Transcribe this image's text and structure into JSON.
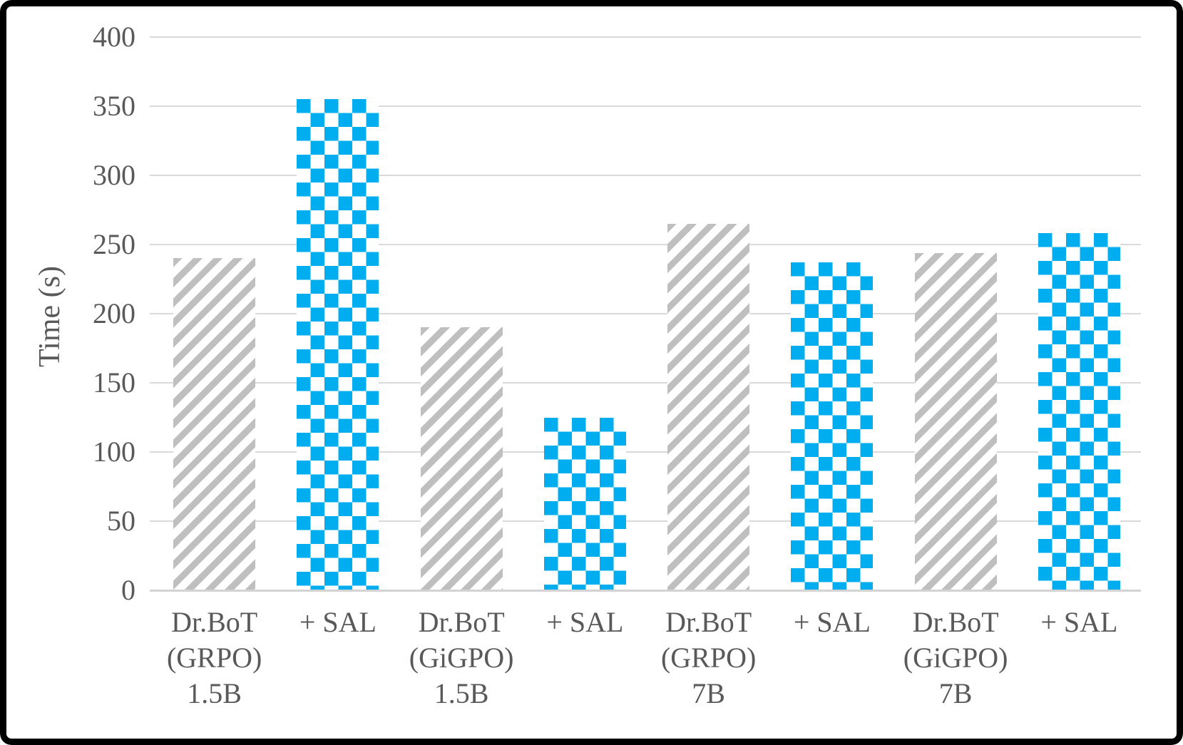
{
  "chart_data": {
    "type": "bar",
    "title": "",
    "xlabel": "",
    "ylabel": "Time (s)",
    "ylim": [
      0,
      400
    ],
    "ytick_step": 50,
    "yticks": [
      400,
      350,
      300,
      250,
      200,
      150,
      100,
      50,
      0
    ],
    "grid": "horizontal",
    "legend": "none",
    "categories": [
      "Dr.BoT (GRPO) 1.5B",
      "+ SAL",
      "Dr.BoT (GiGPO) 1.5B",
      "+ SAL",
      "Dr.BoT (GRPO) 7B",
      "+ SAL",
      "Dr.BoT (GiGPO) 7B",
      "+ SAL"
    ],
    "bars": [
      {
        "label_lines": [
          "Dr.BoT",
          "(GRPO)",
          "1.5B"
        ],
        "value": 240,
        "pattern": "diagonal-stripes",
        "color": "#bfbfbf"
      },
      {
        "label_lines": [
          "+ SAL"
        ],
        "value": 355,
        "pattern": "checkerboard",
        "color": "#00aeef"
      },
      {
        "label_lines": [
          "Dr.BoT",
          "(GiGPO)",
          "1.5B"
        ],
        "value": 190,
        "pattern": "diagonal-stripes",
        "color": "#bfbfbf"
      },
      {
        "label_lines": [
          "+ SAL"
        ],
        "value": 125,
        "pattern": "checkerboard",
        "color": "#00aeef"
      },
      {
        "label_lines": [
          "Dr.BoT",
          "(GRPO)",
          "7B"
        ],
        "value": 265,
        "pattern": "diagonal-stripes",
        "color": "#bfbfbf"
      },
      {
        "label_lines": [
          "+ SAL"
        ],
        "value": 237,
        "pattern": "checkerboard",
        "color": "#00aeef"
      },
      {
        "label_lines": [
          "Dr.BoT",
          "(GiGPO)",
          "7B"
        ],
        "value": 244,
        "pattern": "diagonal-stripes",
        "color": "#bfbfbf"
      },
      {
        "label_lines": [
          "+ SAL"
        ],
        "value": 258,
        "pattern": "checkerboard",
        "color": "#00aeef"
      }
    ],
    "colors": {
      "stripe_bar": "#bfbfbf",
      "checker_bar": "#00aeef",
      "gridline": "#d9d9d9",
      "axis_text": "#595959",
      "frame_border": "#000000",
      "background": "#ffffff"
    }
  }
}
